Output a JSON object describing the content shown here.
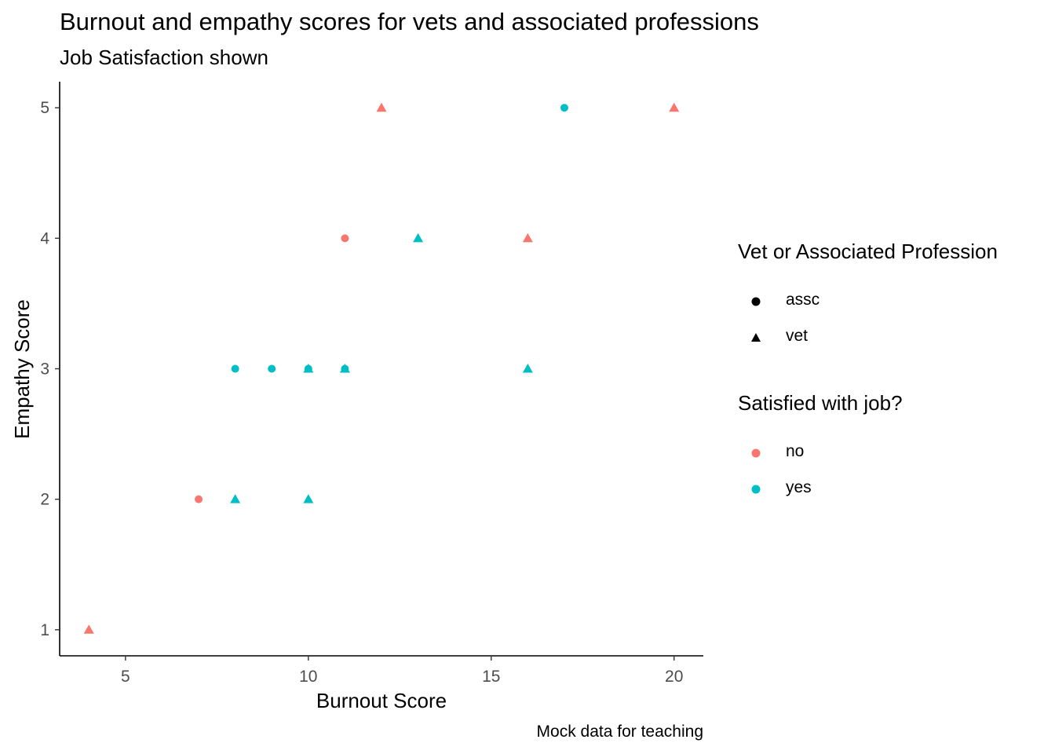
{
  "chart_data": {
    "type": "scatter",
    "title": "Burnout and empathy scores for vets and associated professions",
    "subtitle": "Job Satisfaction shown",
    "xlabel": "Burnout Score",
    "ylabel": "Empathy Score",
    "caption": "Mock data for teaching",
    "xlim": [
      3.2,
      20.8
    ],
    "ylim": [
      0.8,
      5.2
    ],
    "xticks": [
      5,
      10,
      15,
      20
    ],
    "yticks": [
      1,
      2,
      3,
      4,
      5
    ],
    "grid": false,
    "legend_placement": "right",
    "legends": [
      {
        "title": "Vet or Associated Profession",
        "items": [
          {
            "label": "assc",
            "shape": "circle"
          },
          {
            "label": "vet",
            "shape": "triangle"
          }
        ]
      },
      {
        "title": "Satisfied with job?",
        "items": [
          {
            "label": "no",
            "color": "#F8766D"
          },
          {
            "label": "yes",
            "color": "#00BFC4"
          }
        ]
      }
    ],
    "colors": {
      "no": "#F8766D",
      "yes": "#00BFC4"
    },
    "points": [
      {
        "x": 4,
        "y": 1,
        "profession": "vet",
        "satisfied": "no"
      },
      {
        "x": 7,
        "y": 2,
        "profession": "assc",
        "satisfied": "no"
      },
      {
        "x": 8,
        "y": 2,
        "profession": "vet",
        "satisfied": "yes"
      },
      {
        "x": 10,
        "y": 2,
        "profession": "vet",
        "satisfied": "yes"
      },
      {
        "x": 8,
        "y": 3,
        "profession": "assc",
        "satisfied": "yes"
      },
      {
        "x": 9,
        "y": 3,
        "profession": "assc",
        "satisfied": "yes"
      },
      {
        "x": 10,
        "y": 3,
        "profession": "assc",
        "satisfied": "yes"
      },
      {
        "x": 10,
        "y": 3,
        "profession": "vet",
        "satisfied": "yes"
      },
      {
        "x": 11,
        "y": 3,
        "profession": "assc",
        "satisfied": "yes"
      },
      {
        "x": 11,
        "y": 3,
        "profession": "vet",
        "satisfied": "yes"
      },
      {
        "x": 16,
        "y": 3,
        "profession": "vet",
        "satisfied": "yes"
      },
      {
        "x": 11,
        "y": 4,
        "profession": "assc",
        "satisfied": "no"
      },
      {
        "x": 13,
        "y": 4,
        "profession": "vet",
        "satisfied": "yes"
      },
      {
        "x": 16,
        "y": 4,
        "profession": "vet",
        "satisfied": "no"
      },
      {
        "x": 12,
        "y": 5,
        "profession": "vet",
        "satisfied": "no"
      },
      {
        "x": 17,
        "y": 5,
        "profession": "assc",
        "satisfied": "yes"
      },
      {
        "x": 20,
        "y": 5,
        "profession": "vet",
        "satisfied": "no"
      }
    ]
  }
}
